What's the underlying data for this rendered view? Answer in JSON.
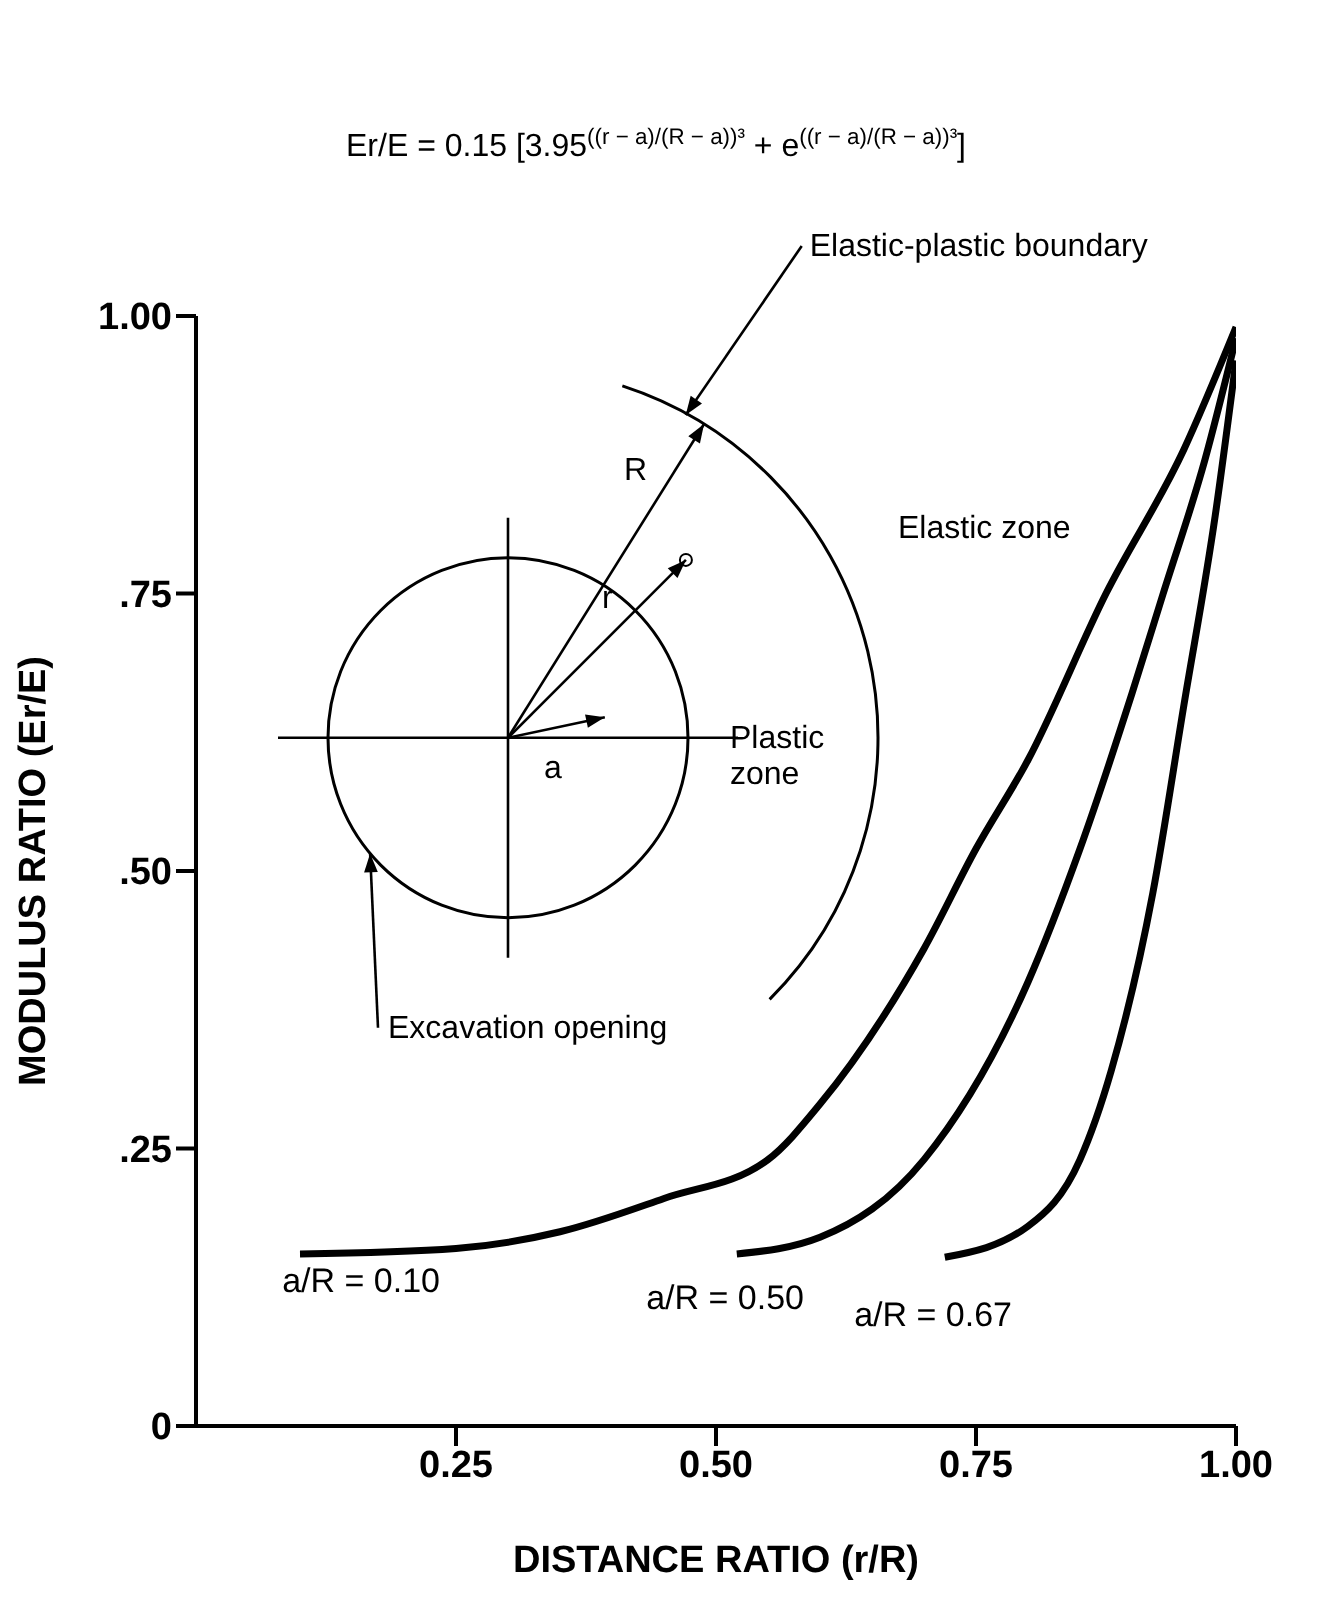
{
  "chart_data": {
    "type": "line",
    "xlabel": "DISTANCE RATIO (r/R)",
    "ylabel": "MODULUS RATIO (Er/E)",
    "annotations": [
      "Er/E = 0.15 [3.95$^{((r − a)/(R − a))³}$ + e$^{((r − a)/(R − a))³}$]",
      "Elastic-plastic boundary",
      "Plastic zone",
      "Elastic zone",
      "Excavation opening",
      "R",
      "r",
      "a"
    ],
    "xlim": [
      0,
      1
    ],
    "xticks": [
      {
        "value": 0.25,
        "label": "0.25"
      },
      {
        "value": 0.5,
        "label": "0.50"
      },
      {
        "value": 0.75,
        "label": "0.75"
      },
      {
        "value": 1,
        "label": "1.00"
      }
    ],
    "ylim": [
      0,
      1
    ],
    "yticks": [
      {
        "value": 0,
        "label": "0"
      },
      {
        "value": 0.25,
        "label": ".25"
      },
      {
        "value": 0.5,
        "label": ".50"
      },
      {
        "value": 0.75,
        "label": ".75"
      },
      {
        "value": 1,
        "label": "1.00"
      }
    ],
    "grid": false,
    "legend": false,
    "marker": "none",
    "line_style": "solid",
    "series": [
      {
        "name": "a/R = 0.10",
        "color": "#000000",
        "x": [
          0.1,
          0.25,
          0.35,
          0.45,
          0.55,
          0.6,
          0.7,
          0.75,
          0.8,
          0.875,
          0.95,
          1.0
        ],
        "values": [
          0.155,
          0.16,
          0.175,
          0.205,
          0.24,
          0.29,
          0.43,
          0.52,
          0.6,
          0.75,
          0.88,
          0.99
        ]
      },
      {
        "name": "a/R = 0.50",
        "color": "#000000",
        "x": [
          0.52,
          0.6,
          0.7,
          0.8,
          0.85,
          0.9,
          0.93,
          0.97,
          1.0
        ],
        "values": [
          0.155,
          0.17,
          0.24,
          0.4,
          0.52,
          0.66,
          0.75,
          0.87,
          0.98
        ]
      },
      {
        "name": "a/R = 0.67",
        "color": "#000000",
        "x": [
          0.72,
          0.8,
          0.85,
          0.88,
          0.92,
          0.95,
          0.98,
          1.0
        ],
        "values": [
          0.152,
          0.18,
          0.24,
          0.32,
          0.48,
          0.65,
          0.82,
          0.96
        ]
      }
    ]
  }
}
